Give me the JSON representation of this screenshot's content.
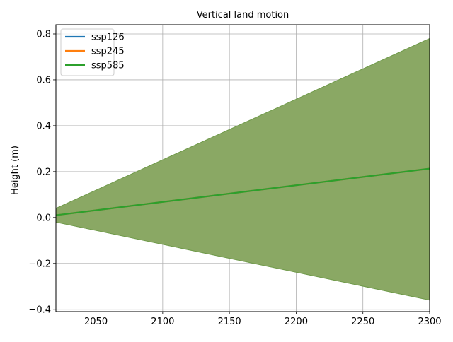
{
  "chart_data": {
    "type": "line",
    "title": "Vertical land motion",
    "xlabel": "",
    "ylabel": "Height (m)",
    "xlim": [
      2020,
      2300
    ],
    "ylim": [
      -0.41,
      0.84
    ],
    "x_ticks": [
      2050,
      2100,
      2150,
      2200,
      2250,
      2300
    ],
    "y_ticks": [
      -0.4,
      -0.2,
      0.0,
      0.2,
      0.4,
      0.6,
      0.8
    ],
    "y_tick_labels": [
      "−0.4",
      "−0.2",
      "0.0",
      "0.2",
      "0.4",
      "0.6",
      "0.8"
    ],
    "grid": true,
    "legend_position": "top-left",
    "x": [
      2020,
      2300
    ],
    "series": [
      {
        "name": "ssp126",
        "color": "#1f77b4",
        "values": [
          0.01,
          0.213
        ],
        "band_lower": [
          -0.02,
          -0.36
        ],
        "band_upper": [
          0.04,
          0.78
        ]
      },
      {
        "name": "ssp245",
        "color": "#ff7f0e",
        "values": [
          0.01,
          0.213
        ],
        "band_lower": [
          -0.02,
          -0.36
        ],
        "band_upper": [
          0.04,
          0.78
        ]
      },
      {
        "name": "ssp585",
        "color": "#2ca02c",
        "values": [
          0.01,
          0.213
        ],
        "band_lower": [
          -0.02,
          -0.36
        ],
        "band_upper": [
          0.04,
          0.78
        ]
      }
    ],
    "band_color": "#8aa864"
  }
}
